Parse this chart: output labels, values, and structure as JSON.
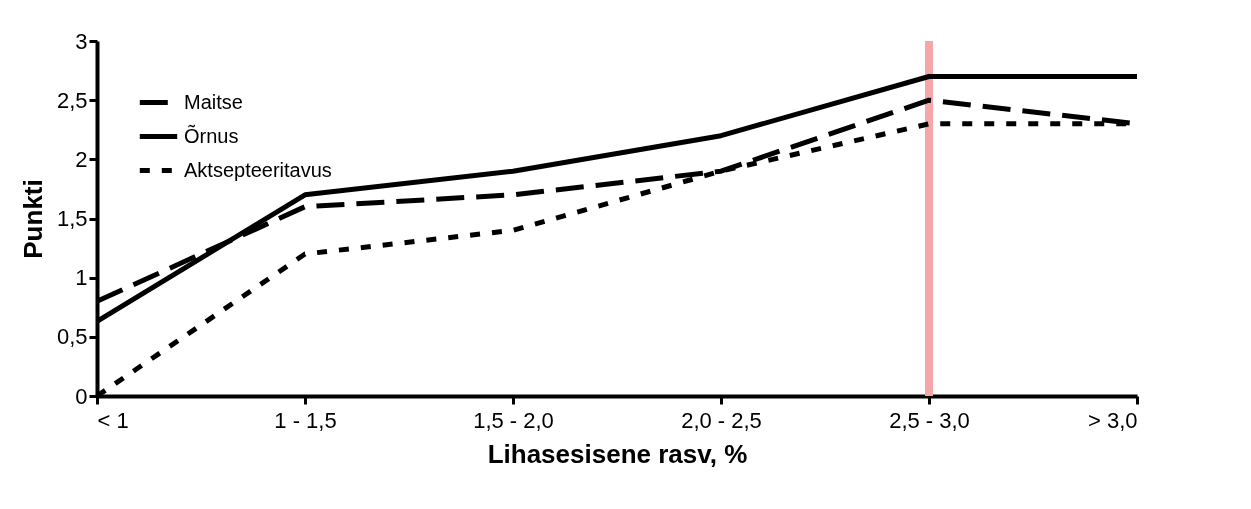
{
  "chart_data": {
    "type": "line",
    "xlabel": "Lihasesisene rasv, %",
    "ylabel": "Punkti",
    "categories": [
      "< 1",
      "1 - 1,5",
      "1,5 - 2,0",
      "2,0 - 2,5",
      "2,5 - 3,0",
      "> 3,0"
    ],
    "series": [
      {
        "name": "Maitse",
        "color": "#000000",
        "line_style": "dashed",
        "values": [
          0.8,
          1.6,
          1.7,
          1.9,
          2.5,
          2.3
        ]
      },
      {
        "name": "Õrnus",
        "color": "#000000",
        "line_style": "solid",
        "values": [
          0.63,
          1.7,
          1.9,
          2.2,
          2.7,
          2.7
        ]
      },
      {
        "name": "Aktsepteeritavus",
        "color": "#000000",
        "line_style": "dotted",
        "values": [
          0,
          1.2,
          1.4,
          1.9,
          2.3,
          2.3
        ]
      }
    ],
    "ylim": [
      0,
      3
    ],
    "yticks": [
      0,
      {
        "value": 0.5,
        "label": "0,5"
      },
      1,
      {
        "value": 1.5,
        "label": "1,5"
      },
      2,
      {
        "value": 2.5,
        "label": "2,5"
      },
      3
    ],
    "ref_lines": [
      {
        "axis": "x",
        "value": "2,5 - 3,0",
        "label": null,
        "color": "#f4a6a8"
      }
    ],
    "legend": "top left",
    "grid": false,
    "marker": "none"
  }
}
